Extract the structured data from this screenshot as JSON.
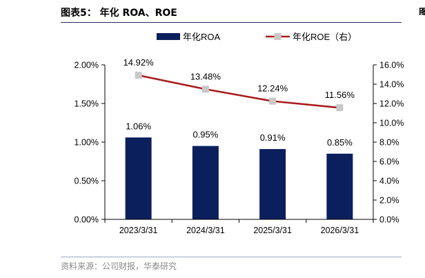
{
  "figure": {
    "title": "图表5： 年化 ROA、ROE",
    "source": "资料来源：公司财报，华泰研究"
  },
  "chart_data": {
    "type": "bar",
    "categories": [
      "2023/3/31",
      "2024/3/31",
      "2025/3/31",
      "2026/3/31"
    ],
    "series": [
      {
        "name": "年化ROA",
        "type": "bar",
        "axis": "left",
        "color": "#0b1f5c",
        "values": [
          1.06,
          0.95,
          0.91,
          0.85
        ],
        "labels": [
          "1.06%",
          "0.95%",
          "0.91%",
          "0.85%"
        ]
      },
      {
        "name": "年化ROE（右）",
        "type": "line",
        "axis": "right",
        "color": "#a81c1c",
        "marker_color": "#c8c8c8",
        "values": [
          14.92,
          13.48,
          12.24,
          11.56
        ],
        "labels": [
          "14.92%",
          "13.48%",
          "12.24%",
          "11.56%"
        ]
      }
    ],
    "y_left": {
      "lim": [
        0,
        2.0
      ],
      "ticks": [
        0,
        0.5,
        1.0,
        1.5,
        2.0
      ],
      "tick_labels": [
        "0.00%",
        "0.50%",
        "1.00%",
        "1.50%",
        "2.00%"
      ]
    },
    "y_right": {
      "lim": [
        0,
        16
      ],
      "ticks": [
        0,
        2,
        4,
        6,
        8,
        10,
        12,
        14,
        16
      ],
      "tick_labels": [
        "0.0%",
        "2.0%",
        "4.0%",
        "6.0%",
        "8.0%",
        "10.0%",
        "12.0%",
        "14.0%",
        "16.0%"
      ]
    },
    "legend_placement": "top",
    "grid": false
  }
}
